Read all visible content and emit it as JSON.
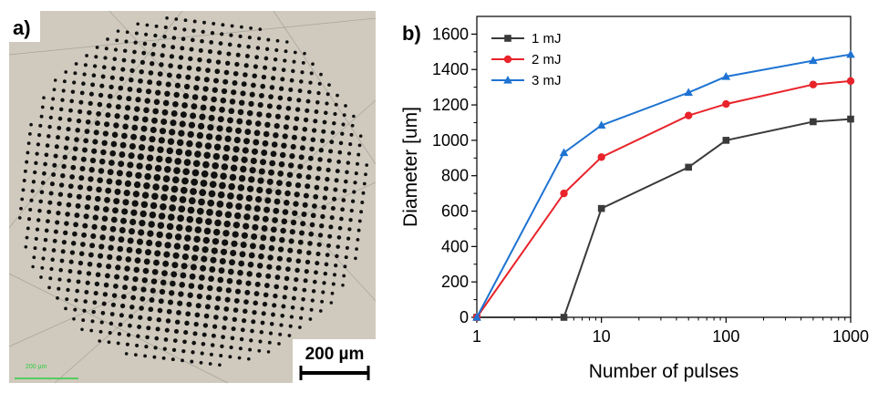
{
  "panel_a": {
    "label": "a)",
    "scale_bar_label": "200 µm",
    "small_scale_label": "200 µm"
  },
  "panel_b": {
    "label": "b)"
  },
  "colors": {
    "series_1mJ": "#3a3a3a",
    "series_2mJ": "#e8232a",
    "series_3mJ": "#1e73d2",
    "background_photo": "#cfcabd",
    "hole_color": "#111111",
    "small_scale_color": "#2ecc40"
  },
  "chart_data": {
    "type": "line",
    "x_scale": "log",
    "x": [
      1,
      5,
      10,
      50,
      100,
      500,
      1000
    ],
    "xlabel": "Number of pulses",
    "ylabel": "Diameter [um]",
    "xlim": [
      1,
      1000
    ],
    "ylim": [
      0,
      1700
    ],
    "x_ticks": [
      1,
      10,
      100,
      1000
    ],
    "x_tick_labels": [
      "1",
      "10",
      "100",
      "1000"
    ],
    "y_ticks": [
      0,
      200,
      400,
      600,
      800,
      1000,
      1200,
      1400,
      1600
    ],
    "y_tick_labels": [
      "0",
      "200",
      "400",
      "600",
      "800",
      "1000",
      "1200",
      "1400",
      "1600"
    ],
    "legend_position": "top-left",
    "grid": false,
    "series": [
      {
        "name": "1 mJ",
        "marker": "square",
        "color": "#3a3a3a",
        "x": [
          1,
          5,
          10,
          50,
          100,
          500,
          1000
        ],
        "values": [
          0,
          0,
          615,
          848,
          1000,
          1105,
          1120
        ]
      },
      {
        "name": "2 mJ",
        "marker": "circle",
        "color": "#e8232a",
        "x": [
          1,
          5,
          10,
          50,
          100,
          500,
          1000
        ],
        "values": [
          0,
          700,
          905,
          1140,
          1205,
          1315,
          1335
        ]
      },
      {
        "name": "3 mJ",
        "marker": "triangle",
        "color": "#1e73d2",
        "x": [
          1,
          5,
          10,
          50,
          100,
          500,
          1000
        ],
        "values": [
          0,
          930,
          1085,
          1270,
          1360,
          1450,
          1485
        ]
      }
    ]
  }
}
